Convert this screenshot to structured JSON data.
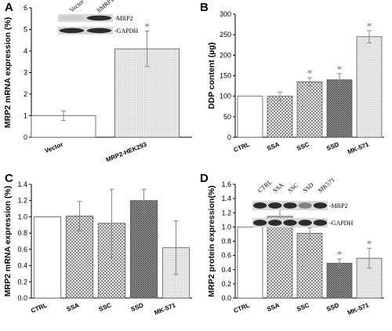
{
  "patterns": {
    "white": "#ffffff",
    "hatch": "#cfcfcf",
    "dense": "#8c8c8c",
    "light": "#e0e0e0"
  },
  "chart_data": [
    {
      "panel": "A",
      "type": "bar",
      "ylabel": "MRP2 mRNA expression (%)",
      "categories": [
        "Vector",
        "MRP2-HEK293"
      ],
      "values": [
        1.0,
        4.1
      ],
      "errors": [
        0.22,
        0.82
      ],
      "fills": [
        "white",
        "light"
      ],
      "stars": [
        false,
        true
      ],
      "ylim": [
        0,
        6
      ],
      "yticks": [
        0,
        1,
        2,
        3,
        4,
        5,
        6
      ],
      "blot": {
        "lanes": [
          "Vector",
          "hMRP2"
        ],
        "rows": [
          "MRP2",
          "GAPDH"
        ]
      }
    },
    {
      "panel": "B",
      "type": "bar",
      "ylabel": "DDP content (µg)",
      "categories": [
        "CTRL",
        "SSA",
        "SSC",
        "SSD",
        "MK-571"
      ],
      "values": [
        100,
        100,
        135,
        140,
        245
      ],
      "errors": [
        0,
        10,
        10,
        15,
        15
      ],
      "fills": [
        "white",
        "hatch",
        "hatch",
        "dense",
        "light"
      ],
      "stars": [
        false,
        false,
        true,
        true,
        true
      ],
      "ylim": [
        0,
        300
      ],
      "yticks": [
        0,
        50,
        100,
        150,
        200,
        250,
        300
      ]
    },
    {
      "panel": "C",
      "type": "bar",
      "ylabel": "MRP2 mRNA expression (%)",
      "categories": [
        "CTRL",
        "SSA",
        "SSC",
        "SSD",
        "MK-571"
      ],
      "values": [
        1.0,
        1.01,
        0.92,
        1.2,
        0.62
      ],
      "errors": [
        0,
        0.18,
        0.42,
        0.14,
        0.33
      ],
      "fills": [
        "white",
        "hatch",
        "hatch",
        "dense",
        "light"
      ],
      "stars": [
        false,
        false,
        false,
        false,
        false
      ],
      "ylim": [
        0,
        1.4
      ],
      "yticks": [
        0.0,
        0.2,
        0.4,
        0.6,
        0.8,
        1.0,
        1.2,
        1.4
      ]
    },
    {
      "panel": "D",
      "type": "bar",
      "ylabel": "MRP2 protein expression(%)",
      "categories": [
        "CTRL",
        "SSA",
        "SSC",
        "SSD",
        "MK-571"
      ],
      "values": [
        1.0,
        1.15,
        0.91,
        0.49,
        0.56
      ],
      "errors": [
        0,
        0.1,
        0.08,
        0.06,
        0.14
      ],
      "fills": [
        "white",
        "hatch",
        "hatch",
        "dense",
        "light"
      ],
      "stars": [
        false,
        false,
        false,
        true,
        true
      ],
      "ylim": [
        0,
        1.6
      ],
      "yticks": [
        0.0,
        0.2,
        0.4,
        0.6,
        0.8,
        1.0,
        1.2,
        1.4,
        1.6
      ],
      "blot": {
        "lanes": [
          "CTRL",
          "SSA",
          "SSC",
          "SSD",
          "MK571"
        ],
        "rows": [
          "MRP2",
          "GAPDH"
        ]
      }
    }
  ]
}
